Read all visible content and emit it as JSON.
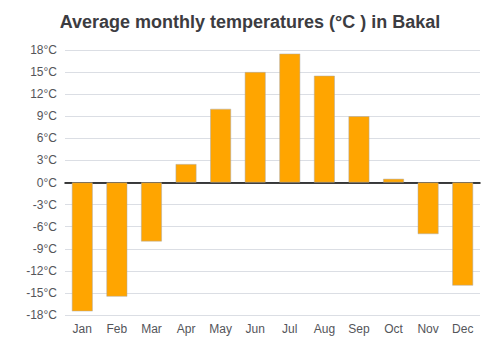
{
  "chart_data": {
    "type": "bar",
    "title": "Average monthly temperatures (°C ) in Bakal",
    "categories": [
      "Jan",
      "Feb",
      "Mar",
      "Apr",
      "May",
      "Jun",
      "Jul",
      "Aug",
      "Sep",
      "Oct",
      "Nov",
      "Dec"
    ],
    "values": [
      -17.5,
      -15.5,
      -8.0,
      2.5,
      10.0,
      15.0,
      17.5,
      14.5,
      9.0,
      0.5,
      -7.0,
      -14.0
    ],
    "color": "#FFA500",
    "ylim": [
      -18,
      18
    ],
    "yticks": [
      {
        "value": -18,
        "label": "-18°C"
      },
      {
        "value": -15,
        "label": "-15°C"
      },
      {
        "value": -12,
        "label": "-12°C"
      },
      {
        "value": -9,
        "label": "-9°C"
      },
      {
        "value": -6,
        "label": "-6°C"
      },
      {
        "value": -3,
        "label": "-3°C"
      },
      {
        "value": 0,
        "label": "0°C"
      },
      {
        "value": 3,
        "label": "3°C"
      },
      {
        "value": 6,
        "label": "6°C"
      },
      {
        "value": 9,
        "label": "9°C"
      },
      {
        "value": 12,
        "label": "12°C"
      },
      {
        "value": 15,
        "label": "15°C"
      },
      {
        "value": 18,
        "label": "18°C"
      }
    ],
    "grid": true
  }
}
